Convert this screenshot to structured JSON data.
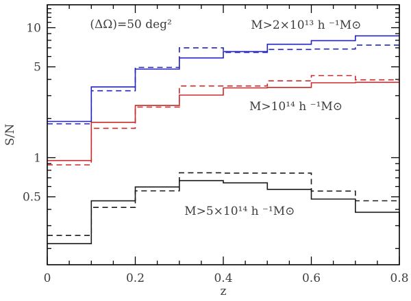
{
  "figure": {
    "kind": "scientific step plot",
    "background": "#ffffff"
  },
  "chart_data": {
    "type": "line",
    "subtype": "step-histogram",
    "title": "(ΔΩ)=50 deg²",
    "xlabel": "z",
    "ylabel": "S/N",
    "xlim": [
      0,
      0.8
    ],
    "ylim": [
      0.15,
      15
    ],
    "yscale": "log",
    "grid": false,
    "legend_position": "none",
    "x_ticks_major": [
      0,
      0.2,
      0.4,
      0.6,
      0.8
    ],
    "x_tick_labels": [
      "0",
      "0.2",
      "0.4",
      "0.6",
      "0.8"
    ],
    "x_minor_step": 0.05,
    "y_ticks_major": [
      10,
      5,
      1,
      0.5
    ],
    "y_tick_labels": [
      "10",
      "5",
      "1",
      "0.5"
    ],
    "y_ticks_minor": [
      0.2,
      0.3,
      0.4,
      0.6,
      0.7,
      0.8,
      0.9,
      2,
      3,
      4,
      6,
      7,
      8,
      9,
      11,
      12,
      13,
      14
    ],
    "bin_edges": [
      0,
      0.1,
      0.2,
      0.3,
      0.4,
      0.5,
      0.6,
      0.7,
      0.8
    ],
    "colors": {
      "blue": "#2222c0",
      "red": "#cd2828",
      "black": "#1a1a1a"
    },
    "series": [
      {
        "name": "M>2e13 solid",
        "color": "#2222c0",
        "style": "solid",
        "values": [
          1.9,
          3.5,
          4.8,
          5.85,
          6.55,
          7.45,
          7.95,
          8.65
        ]
      },
      {
        "name": "M>2e13 dashed",
        "color": "#2222c0",
        "style": "dashed",
        "values": [
          1.82,
          3.27,
          4.95,
          7.0,
          6.45,
          6.8,
          6.85,
          7.35
        ]
      },
      {
        "name": "M>1e14 solid",
        "color": "#cd2828",
        "style": "solid",
        "values": [
          0.95,
          1.87,
          2.52,
          3.03,
          3.44,
          3.47,
          3.77,
          3.8
        ]
      },
      {
        "name": "M>1e14 dashed",
        "color": "#cd2828",
        "style": "dashed",
        "values": [
          0.88,
          1.68,
          2.45,
          3.56,
          3.56,
          3.9,
          4.28,
          3.97
        ]
      },
      {
        "name": "M>5e14 solid",
        "color": "#1a1a1a",
        "style": "solid",
        "values": [
          0.218,
          0.465,
          0.595,
          0.665,
          0.64,
          0.57,
          0.48,
          0.38
        ],
        "end_drop": 0.29
      },
      {
        "name": "M>5e14 dashed",
        "color": "#1a1a1a",
        "style": "dashed",
        "values": [
          0.252,
          0.414,
          0.555,
          0.765,
          0.76,
          0.76,
          0.553,
          0.466
        ]
      }
    ],
    "annotations": [
      {
        "text": "(ΔΩ)=50 deg²",
        "x": 0.19,
        "y": 10.7
      },
      {
        "text": "M>2×10¹³ h ⁻¹M⊙",
        "x": 0.588,
        "y": 10.55
      },
      {
        "text": "M>10¹⁴ h ⁻¹M⊙",
        "x": 0.565,
        "y": 2.5
      },
      {
        "text": "M>5×10¹⁴ h ⁻¹M⊙",
        "x": 0.437,
        "y": 0.39
      }
    ]
  }
}
